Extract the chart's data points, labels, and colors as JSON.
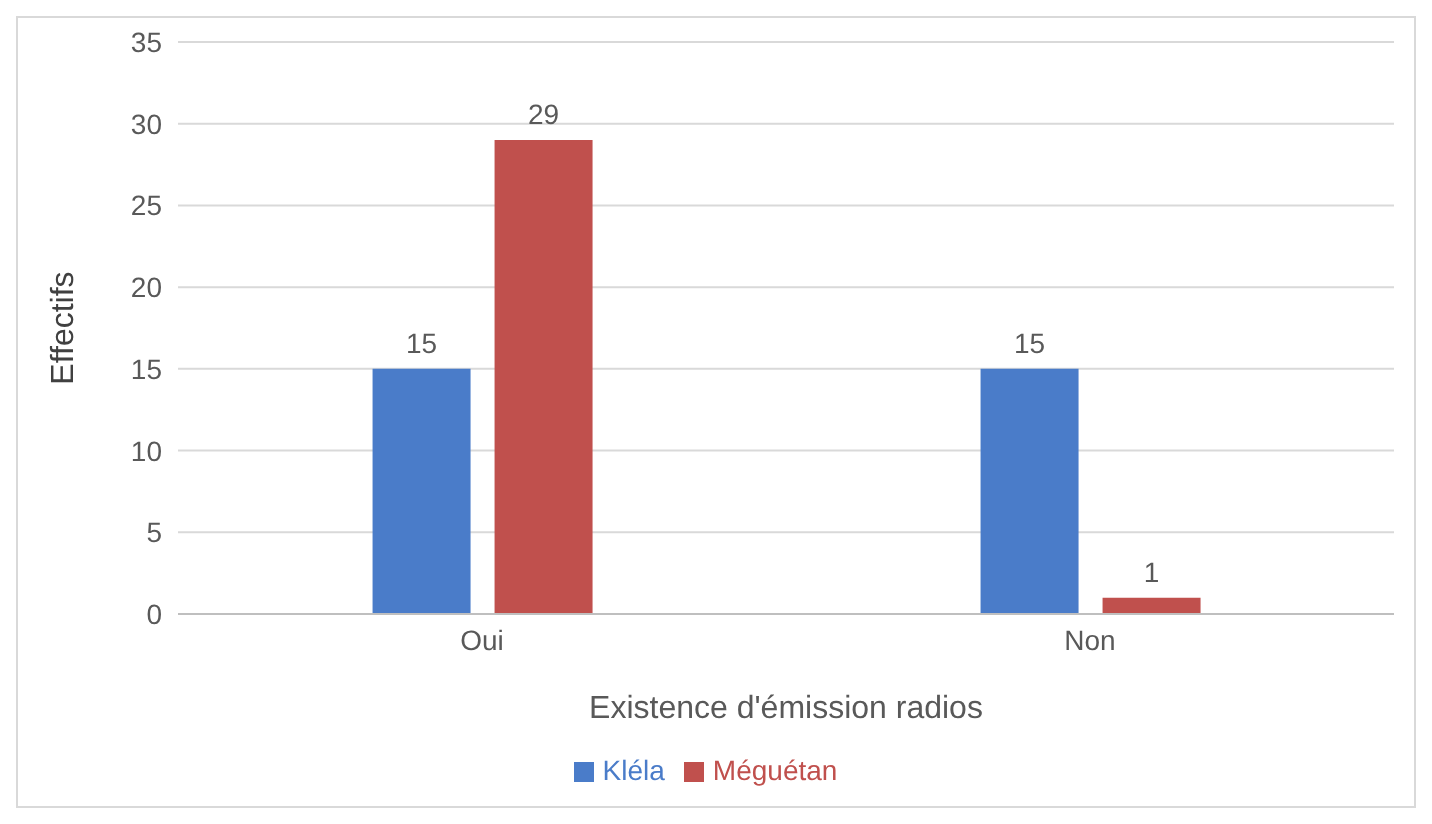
{
  "chart_data": {
    "type": "bar",
    "xlabel": "Existence d'émission radios",
    "ylabel": "Effectifs",
    "categories": [
      "Oui",
      "Non"
    ],
    "series": [
      {
        "name": "Kléla",
        "color": "#4a7cc9",
        "values": [
          15,
          15
        ]
      },
      {
        "name": "Méguétan",
        "color": "#c0504d",
        "values": [
          29,
          1
        ]
      }
    ],
    "ylim": [
      0,
      35
    ],
    "yticks": [
      0,
      5,
      10,
      15,
      20,
      25,
      30,
      35
    ],
    "grid": "y",
    "legend": "bottom",
    "data_labels": true
  }
}
